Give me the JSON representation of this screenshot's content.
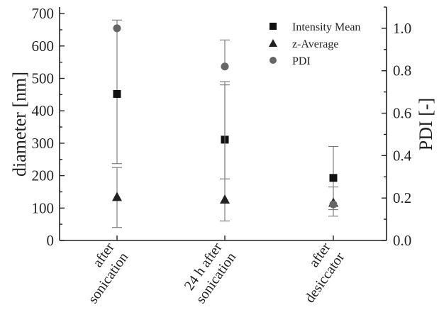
{
  "chart_data": {
    "type": "scatter",
    "categories": [
      [
        "after",
        "sonication"
      ],
      [
        "24 h after",
        "sonication"
      ],
      [
        "after",
        "desiccator"
      ]
    ],
    "ylabel": "diameter [nm]",
    "y2label": "PDI [-]",
    "ylim": [
      0,
      720
    ],
    "y2lim": [
      0,
      1.1
    ],
    "yticks": [
      "0",
      "100",
      "200",
      "300",
      "400",
      "500",
      "600",
      "700"
    ],
    "y2ticks": [
      "0.0",
      "0.2",
      "0.4",
      "0.6",
      "0.8",
      "1.0"
    ],
    "grid": false,
    "legend_position": "top-right",
    "series": [
      {
        "name": "Intensity Mean",
        "axis": "left",
        "marker": "square",
        "color": "#111111",
        "values": [
          452,
          311,
          193
        ],
        "err_low": [
          237,
          190,
          95
        ],
        "err_high": [
          680,
          490,
          290
        ]
      },
      {
        "name": "z-Average",
        "axis": "left",
        "marker": "triangle",
        "color": "#222222",
        "values": [
          135,
          127,
          117
        ],
        "err_low": [
          40,
          60,
          75
        ],
        "err_high": [
          225,
          480,
          165
        ]
      },
      {
        "name": "PDI",
        "axis": "right",
        "marker": "circle",
        "color": "#666666",
        "values": [
          1.0,
          0.82,
          0.17
        ],
        "err_low": [
          null,
          null,
          null
        ],
        "err_high": [
          null,
          0.945,
          null
        ]
      }
    ]
  }
}
